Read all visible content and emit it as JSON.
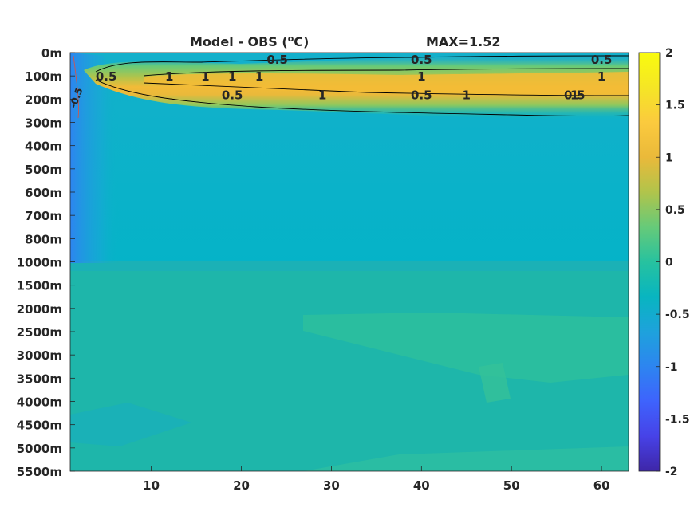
{
  "chart_data": {
    "type": "heatmap",
    "title_left": "Model - OBS (",
    "title_sup": "o",
    "title_unit": "C)",
    "title_right": "MAX=1.52",
    "x_ticks": [
      10,
      20,
      30,
      40,
      50,
      60
    ],
    "xlim": [
      1,
      63
    ],
    "y_ticks": [
      "0m",
      "100m",
      "200m",
      "300m",
      "400m",
      "500m",
      "600m",
      "700m",
      "800m",
      "1000m",
      "1500m",
      "2000m",
      "2500m",
      "3000m",
      "3500m",
      "4000m",
      "4500m",
      "5000m",
      "5500m"
    ],
    "colorbar": {
      "ticks": [
        "2",
        "1.5",
        "1",
        "0.5",
        "0",
        "-0.5",
        "-1",
        "-1.5",
        "-2"
      ],
      "range": [
        -2,
        2
      ],
      "colors": [
        "#3e26a8",
        "#4742e7",
        "#3e63fd",
        "#2d85f0",
        "#1ea2dc",
        "#08b5c0",
        "#27c29f",
        "#66ca79",
        "#b1c44b",
        "#eab93a",
        "#fbca3e",
        "#f5e625",
        "#f9fb0e"
      ]
    },
    "contour_labels": [
      {
        "text": "0.5",
        "x": 5,
        "depth": "100m"
      },
      {
        "text": "0.5",
        "x": 24,
        "depth": "0m"
      },
      {
        "text": "0.5",
        "x": 40,
        "depth": "0m"
      },
      {
        "text": "0.5",
        "x": 60,
        "depth": "0m"
      },
      {
        "text": "1",
        "x": 12,
        "depth": "100m"
      },
      {
        "text": "1",
        "x": 16,
        "depth": "100m"
      },
      {
        "text": "1",
        "x": 19,
        "depth": "100m"
      },
      {
        "text": "1",
        "x": 22,
        "depth": "100m"
      },
      {
        "text": "1",
        "x": 29,
        "depth": "200m"
      },
      {
        "text": "1",
        "x": 40,
        "depth": "100m"
      },
      {
        "text": "1",
        "x": 45,
        "depth": "200m"
      },
      {
        "text": "1",
        "x": 57,
        "depth": "200m"
      },
      {
        "text": "1",
        "x": 60,
        "depth": "100m"
      },
      {
        "text": "0.5",
        "x": 19,
        "depth": "200m"
      },
      {
        "text": "0.5",
        "x": 40,
        "depth": "200m"
      },
      {
        "text": "0.5",
        "x": 57,
        "depth": "200m"
      },
      {
        "text": "-0.5",
        "x": 2,
        "depth": "200m"
      }
    ]
  }
}
